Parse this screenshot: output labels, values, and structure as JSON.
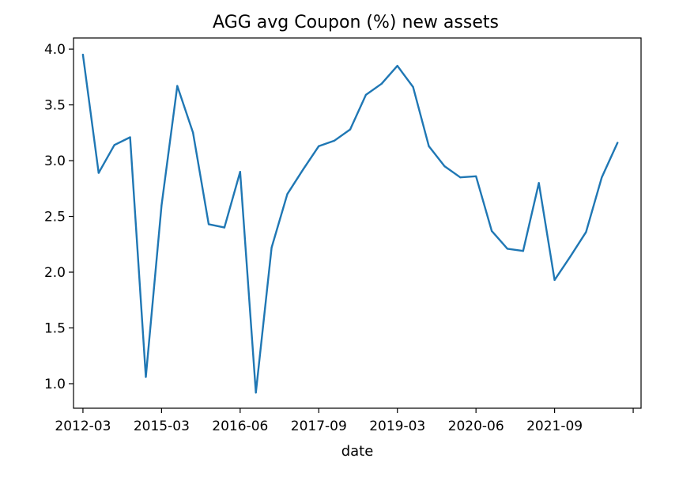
{
  "chart_data": {
    "type": "line",
    "title": "AGG avg Coupon (%) new assets",
    "xlabel": "date",
    "ylabel": "",
    "grid": false,
    "legend": "none",
    "xlim": [
      -0.6,
      35.5
    ],
    "ylim": [
      0.78,
      4.1
    ],
    "x_ticks": [
      {
        "index": 0,
        "label": "2012-03"
      },
      {
        "index": 5,
        "label": "2015-03"
      },
      {
        "index": 10,
        "label": "2016-06"
      },
      {
        "index": 15,
        "label": "2017-09"
      },
      {
        "index": 20,
        "label": "2019-03"
      },
      {
        "index": 25,
        "label": "2020-06"
      },
      {
        "index": 30,
        "label": "2021-09"
      },
      {
        "index": 35,
        "label": ""
      }
    ],
    "y_ticks": [
      {
        "value": 1.0,
        "label": "1.0"
      },
      {
        "value": 1.5,
        "label": "1.5"
      },
      {
        "value": 2.0,
        "label": "2.0"
      },
      {
        "value": 2.5,
        "label": "2.5"
      },
      {
        "value": 3.0,
        "label": "3.0"
      },
      {
        "value": 3.5,
        "label": "3.5"
      },
      {
        "value": 4.0,
        "label": "4.0"
      }
    ],
    "series": [
      {
        "color": "#1f77b4",
        "values": [
          3.95,
          2.89,
          3.14,
          3.21,
          1.06,
          2.6,
          3.67,
          3.25,
          2.43,
          2.4,
          2.9,
          0.92,
          2.22,
          2.7,
          2.92,
          3.13,
          3.18,
          3.28,
          3.59,
          3.69,
          3.85,
          3.66,
          3.13,
          2.95,
          2.85,
          2.86,
          2.37,
          2.21,
          2.19,
          2.8,
          1.93,
          2.14,
          2.36,
          2.85,
          3.16
        ]
      }
    ]
  }
}
